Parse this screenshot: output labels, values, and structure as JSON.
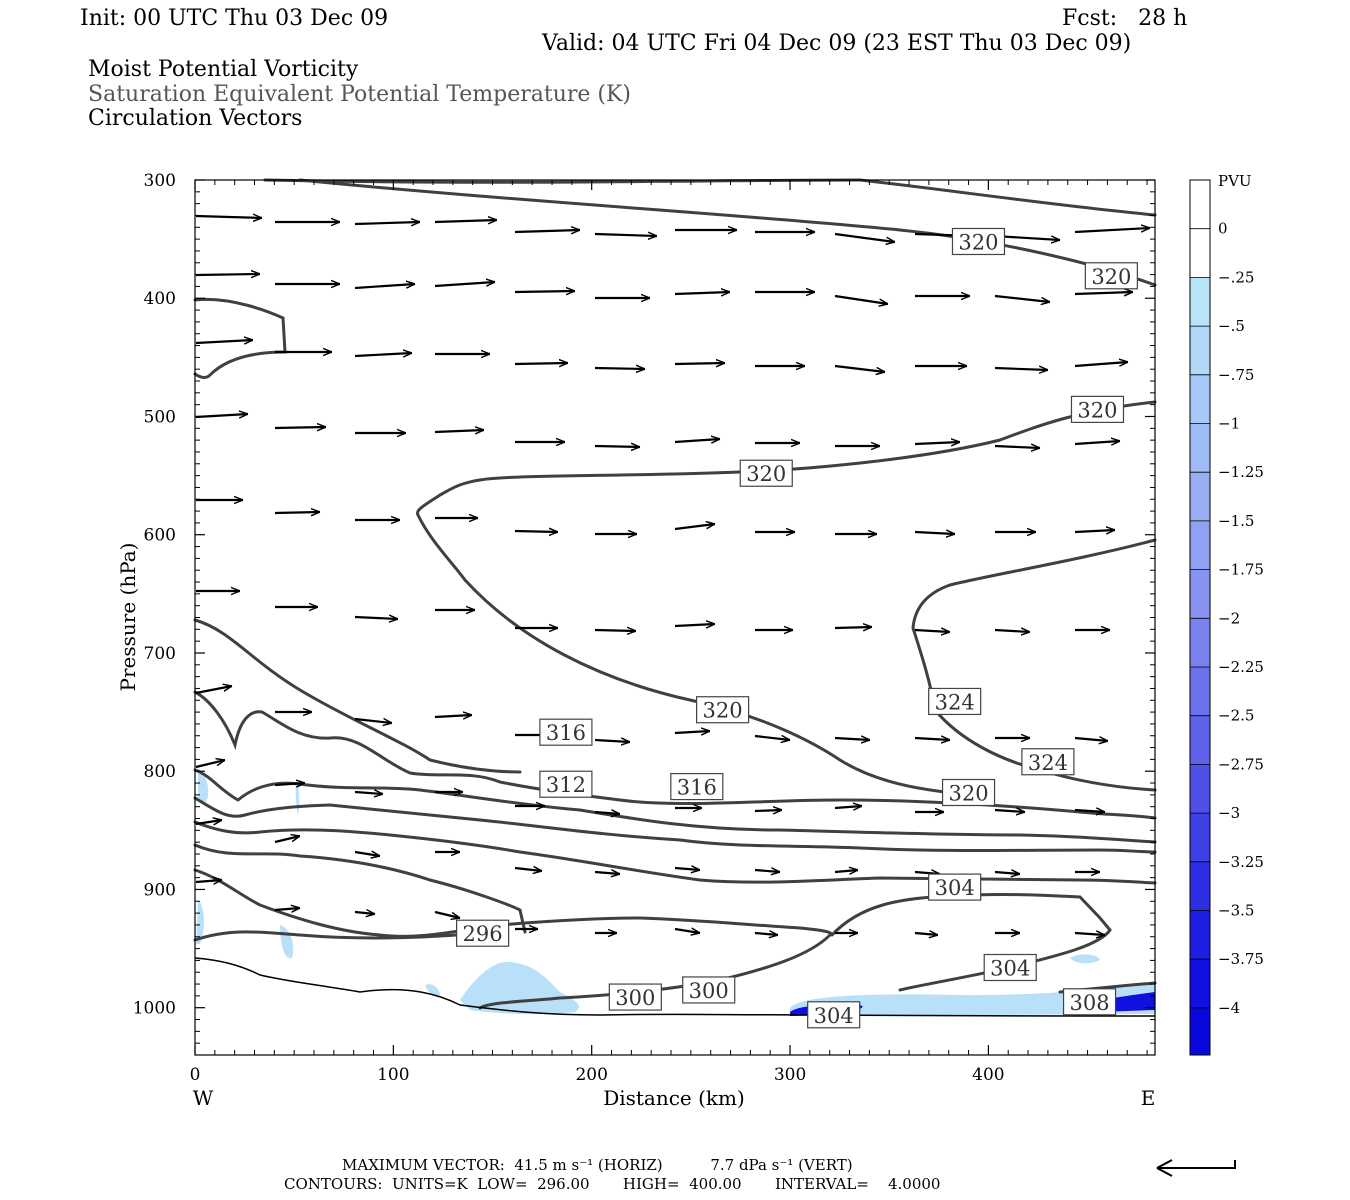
{
  "header": {
    "init": "Init: 00 UTC Thu 03 Dec 09",
    "fcst": "Fcst:   28 h",
    "valid": "Valid: 04 UTC Fri 04 Dec 09 (23 EST Thu 03 Dec 09)",
    "field1": "Moist Potential Vorticity",
    "field2": "Saturation Equivalent Potential Temperature (K)",
    "field3": "Circulation Vectors"
  },
  "footer": {
    "max_vector": "MAXIMUM VECTOR:  41.5 m s⁻¹ (HORIZ)          7.7 dPa s⁻¹ (VERT)",
    "contours": "CONTOURS:  UNITS=K  LOW=  296.00       HIGH=  400.00       INTERVAL=    4.0000"
  },
  "colors": {
    "contour": "#404040",
    "vector": "#000000",
    "pv_light": "#b8e0f8",
    "pv_dark": "#1010e0"
  },
  "chart_data": {
    "type": "cross-section",
    "xlabel": "Distance (km)",
    "ylabel": "Pressure (hPa)",
    "xlim": [
      0,
      484
    ],
    "ylim": [
      1040,
      300
    ],
    "x_ticks": [
      0,
      100,
      200,
      300,
      400
    ],
    "y_ticks": [
      300,
      400,
      500,
      600,
      700,
      800,
      900,
      1000
    ],
    "x_end_labels": {
      "left": "W",
      "right": "E"
    },
    "colorbar": {
      "title": "PVU",
      "levels": [
        "0",
        "-.25",
        "-.5",
        "-.75",
        "-1",
        "-1.25",
        "-1.5",
        "-1.75",
        "-2",
        "-2.25",
        "-2.5",
        "-2.75",
        "-3",
        "-3.25",
        "-3.5",
        "-3.75",
        "-4"
      ]
    },
    "contour_labels": [
      {
        "text": "320",
        "x": 395,
        "p": 352
      },
      {
        "text": "320",
        "x": 462,
        "p": 381
      },
      {
        "text": "320",
        "x": 455,
        "p": 494
      },
      {
        "text": "320",
        "x": 288,
        "p": 548
      },
      {
        "text": "320",
        "x": 266,
        "p": 748
      },
      {
        "text": "324",
        "x": 383,
        "p": 741
      },
      {
        "text": "324",
        "x": 430,
        "p": 792
      },
      {
        "text": "316",
        "x": 187,
        "p": 767
      },
      {
        "text": "316",
        "x": 253,
        "p": 813
      },
      {
        "text": "312",
        "x": 187,
        "p": 811
      },
      {
        "text": "320",
        "x": 390,
        "p": 818
      },
      {
        "text": "304",
        "x": 383,
        "p": 898
      },
      {
        "text": "304",
        "x": 411,
        "p": 966
      },
      {
        "text": "296",
        "x": 145,
        "p": 937
      },
      {
        "text": "300",
        "x": 222,
        "p": 991
      },
      {
        "text": "300",
        "x": 259,
        "p": 985
      },
      {
        "text": "304",
        "x": 322,
        "p": 1006
      },
      {
        "text": "308",
        "x": 451,
        "p": 995
      }
    ]
  }
}
